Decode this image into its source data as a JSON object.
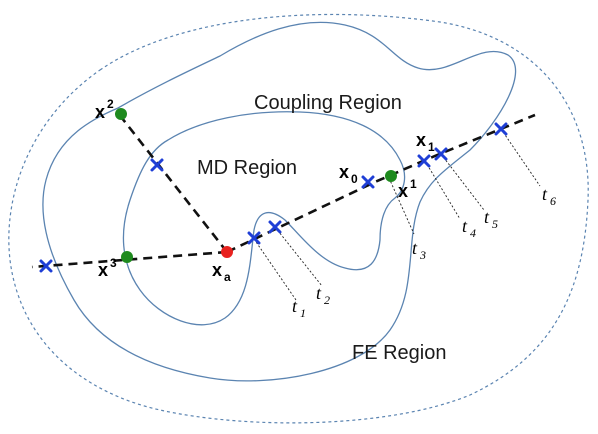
{
  "regions": {
    "coupling": "Coupling Region",
    "md": "MD Region",
    "fe": "FE Region"
  },
  "points": {
    "x2": {
      "base": "x",
      "sup": "2"
    },
    "x3": {
      "base": "x",
      "sup": "3"
    },
    "xa": {
      "base": "x",
      "sub": "a"
    },
    "x0": {
      "base": "x",
      "sub": "0"
    },
    "x1_sup": {
      "base": "x",
      "sup": "1"
    },
    "x1_sub": {
      "base": "x",
      "sub": "1"
    }
  },
  "intersections": [
    {
      "base": "t",
      "sub": "1"
    },
    {
      "base": "t",
      "sub": "2"
    },
    {
      "base": "t",
      "sub": "3"
    },
    {
      "base": "t",
      "sub": "4"
    },
    {
      "base": "t",
      "sub": "5"
    },
    {
      "base": "t",
      "sub": "6"
    }
  ],
  "colors": {
    "boundary": "#5b84b1",
    "dotted_boundary": "#5b84b1",
    "ray": "#111111",
    "cross": "#1f3fd6",
    "green_point": "#1e8a1e",
    "red_point": "#e8221f"
  }
}
